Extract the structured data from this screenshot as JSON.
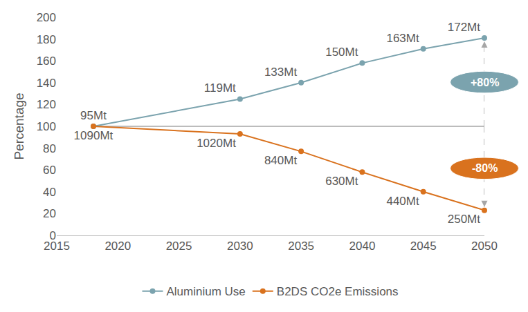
{
  "chart_data": {
    "type": "line",
    "x": [
      2018,
      2030,
      2035,
      2040,
      2045,
      2050
    ],
    "series": [
      {
        "name": "Aluminium Use",
        "color": "#7ba3ae",
        "values": [
          100,
          125,
          140,
          158,
          171,
          181
        ],
        "mt_labels": [
          "95Mt",
          "119Mt",
          "133Mt",
          "150Mt",
          "163Mt",
          "172Mt"
        ]
      },
      {
        "name": "B2DS CO2e Emissions",
        "color": "#d9721e",
        "values": [
          100,
          93,
          77,
          58,
          40,
          23
        ],
        "mt_labels": [
          "1090Mt",
          "1020Mt",
          "840Mt",
          "630Mt",
          "440Mt",
          "250Mt"
        ]
      }
    ],
    "annotations": [
      {
        "text": "+80%",
        "series": "Aluminium Use"
      },
      {
        "text": "-80%",
        "series": "B2DS CO2e Emissions"
      }
    ],
    "reference_line": 100,
    "ylabel": "Percentage",
    "xlim": [
      2015,
      2050
    ],
    "xticks": [
      2015,
      2020,
      2025,
      2030,
      2035,
      2040,
      2045,
      2050
    ],
    "ylim": [
      0,
      200
    ],
    "yticks": [
      0,
      20,
      40,
      60,
      80,
      100,
      120,
      140,
      160,
      180,
      200
    ],
    "grid": false,
    "legend": "bottom",
    "marker": "circle"
  }
}
